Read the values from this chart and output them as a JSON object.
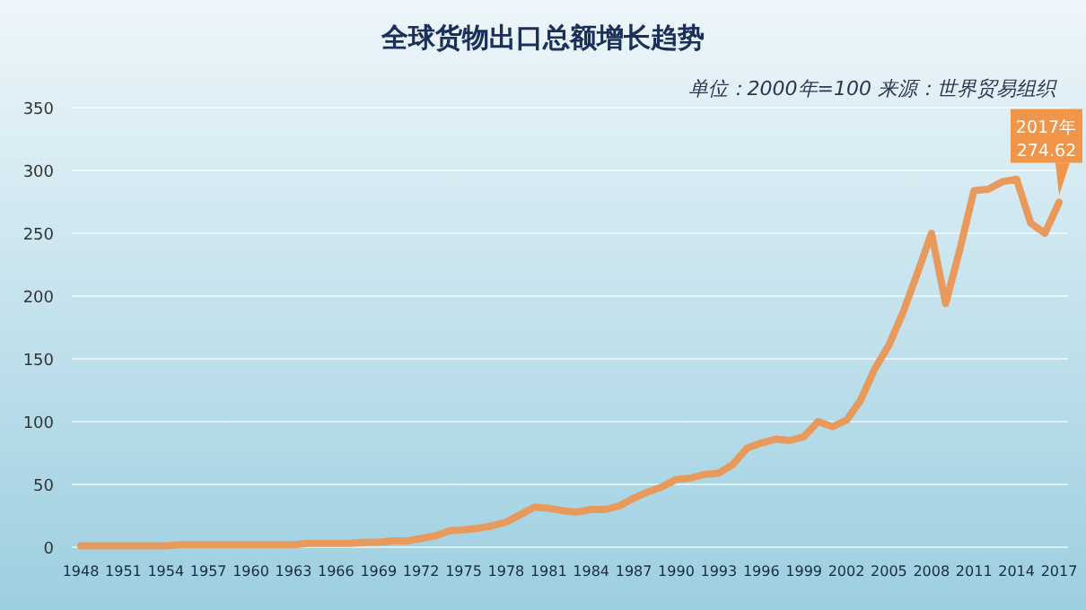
{
  "chart_data": {
    "type": "line",
    "title": "全球货物出口总额增长趋势",
    "subtitle": "单位：2000年=100 来源：世界贸易组织",
    "categories": [
      "1948",
      null,
      null,
      "1951",
      null,
      null,
      "1954",
      null,
      null,
      "1957",
      null,
      null,
      "1960",
      null,
      null,
      "1963",
      null,
      null,
      "1966",
      null,
      null,
      "1969",
      null,
      null,
      "1972",
      null,
      null,
      "1975",
      null,
      null,
      "1978",
      null,
      null,
      "1981",
      null,
      null,
      "1984",
      null,
      null,
      "1987",
      null,
      null,
      "1990",
      null,
      null,
      "1993",
      null,
      null,
      "1996",
      null,
      null,
      "1999",
      null,
      null,
      "2002",
      null,
      null,
      "2005",
      null,
      null,
      "2008",
      null,
      null,
      "2011",
      null,
      null,
      "2014",
      null,
      null,
      "2017"
    ],
    "series": [
      {
        "color": "#e89a5c",
        "values": [
          1,
          1,
          1,
          1,
          1,
          1,
          1,
          2,
          2,
          2,
          2,
          2,
          2,
          2,
          2,
          2,
          3,
          3,
          3,
          3,
          4,
          4,
          5,
          5,
          7,
          9,
          13,
          14,
          15,
          17,
          20,
          26,
          32,
          31,
          29,
          28,
          30,
          30,
          33,
          39,
          44,
          48,
          54,
          55,
          58,
          59,
          66,
          79,
          83,
          86,
          85,
          88,
          100,
          96,
          101,
          117,
          142,
          161,
          187,
          218,
          250,
          194,
          237,
          284,
          285,
          291,
          293,
          258,
          250,
          274.62
        ]
      }
    ],
    "ylim": [
      0,
      350
    ],
    "yticks": [
      0,
      50,
      100,
      150,
      200,
      250,
      300,
      350
    ],
    "grid": "y",
    "line_style": "solid",
    "marker": "none",
    "annotations": [
      {
        "text": "2017年\n274.62",
        "x": "2017",
        "y": 274.62
      }
    ]
  }
}
